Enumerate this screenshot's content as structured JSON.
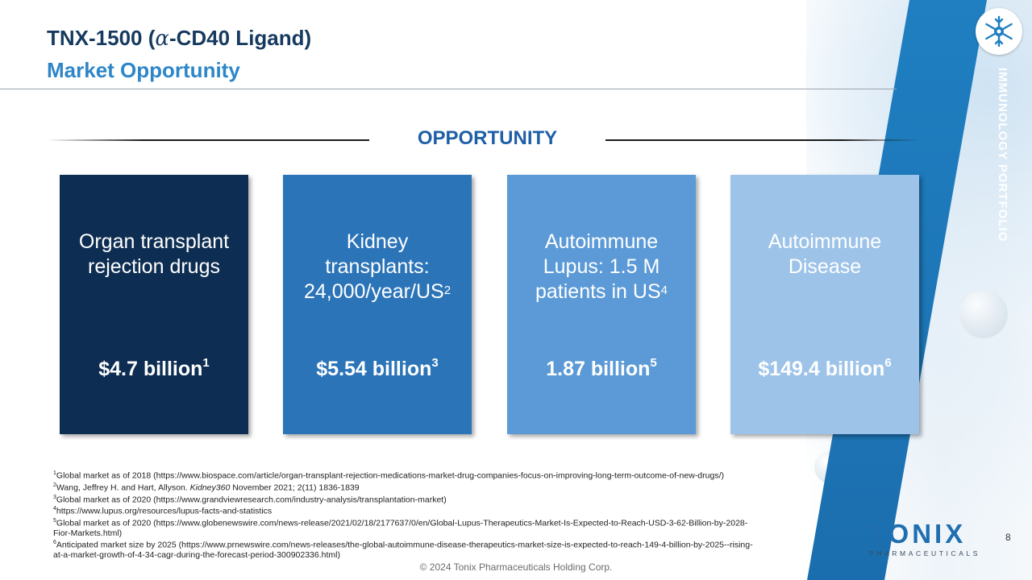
{
  "header": {
    "title_prefix": "TNX-1500 (",
    "title_alpha": "α",
    "title_suffix": "-CD40 Ligand)",
    "subtitle": "Market Opportunity"
  },
  "side_banner": {
    "text": "IMMUNOLOGY PORTFOLIO"
  },
  "section": {
    "heading": "OPPORTUNITY"
  },
  "cards": [
    {
      "lines": [
        "Organ transplant",
        "rejection drugs",
        ""
      ],
      "label_sup": "",
      "value": "$4.7 billion",
      "value_sup": "1",
      "color": "#0d2e52"
    },
    {
      "lines": [
        "Kidney",
        "transplants:",
        "24,000/year/US"
      ],
      "label_sup": "2",
      "value": "$5.54 billion",
      "value_sup": "3",
      "color": "#2c74b8"
    },
    {
      "lines": [
        "Autoimmune",
        "Lupus: 1.5 M",
        "patients in US"
      ],
      "label_sup": "4",
      "value": "1.87 billion",
      "value_sup": "5",
      "color": "#5b9ad6"
    },
    {
      "lines": [
        "Autoimmune",
        "Disease",
        ""
      ],
      "label_sup": "",
      "value": "$149.4 billion",
      "value_sup": "6",
      "color": "#9dc3e8"
    }
  ],
  "footnotes": {
    "n1": {
      "num": "1",
      "text": "Global market as of 2018 (https://www.biospace.com/article/organ-transplant-rejection-medications-market-drug-companies-focus-on-improving-long-term-outcome-of-new-drugs/)"
    },
    "n2": {
      "num": "2",
      "pre": "Wang, Jeffrey H. and Hart, Allyson. ",
      "journal": "Kidney360",
      "post": " November 2021; 2(11) 1836-1839"
    },
    "n3": {
      "num": "3",
      "text": "Global market as of 2020 (https://www.grandviewresearch.com/industry-analysis/transplantation-market)"
    },
    "n4": {
      "num": "4",
      "text": "https://www.lupus.org/resources/lupus-facts-and-statistics"
    },
    "n5": {
      "num": "5",
      "line1": "Global market as of 2020 (https://www.globenewswire.com/news-release/2021/02/18/2177637/0/en/Global-Lupus-Therapeutics-Market-Is-Expected-to-Reach-USD-3-62-Billion-by-2028-",
      "line2": "Fior-Markets.html)"
    },
    "n6": {
      "num": "6",
      "line1": "Anticipated market size by 2025 (https://www.prnewswire.com/news-releases/the-global-autoimmune-disease-therapeutics-market-size-is-expected-to-reach-149-4-billion-by-2025--rising-",
      "line2": "at-a-market-growth-of-4-34-cagr-during-the-forecast-period-300902336.html)"
    }
  },
  "footer": {
    "copyright": "© 2024 Tonix Pharmaceuticals Holding Corp.",
    "page_number": "8",
    "logo_word": "TONIX",
    "logo_sub": "PHARMACEUTICALS"
  }
}
